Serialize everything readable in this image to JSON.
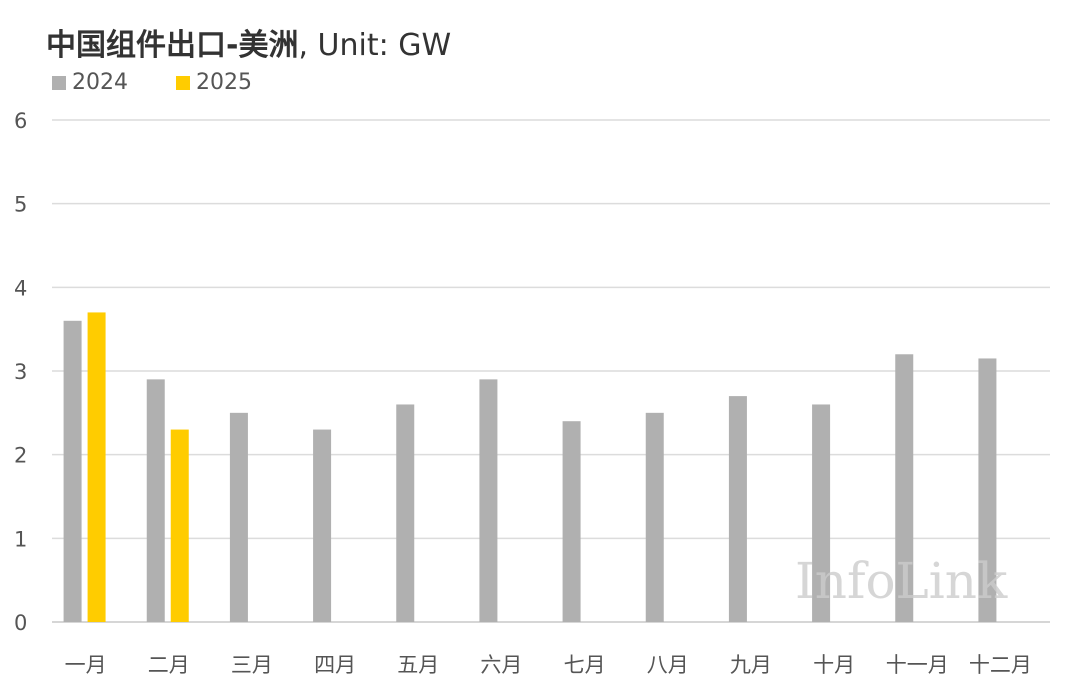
{
  "chart_data": {
    "type": "bar",
    "title": "中国组件出口-美洲",
    "title_suffix": ", Unit: GW",
    "xlabel": "",
    "ylabel": "",
    "ylim": [
      0,
      6
    ],
    "yticks": [
      "0",
      "1",
      "2",
      "3",
      "4",
      "5",
      "6"
    ],
    "grid": true,
    "legend_position": "top-left",
    "categories": [
      "一月",
      "二月",
      "三月",
      "四月",
      "五月",
      "六月",
      "七月",
      "八月",
      "九月",
      "十月",
      "十一月",
      "十二月"
    ],
    "series": [
      {
        "name": "2024",
        "color": "#b0b0b0",
        "values": [
          3.6,
          2.9,
          2.5,
          2.3,
          2.6,
          2.9,
          2.4,
          2.5,
          2.7,
          2.6,
          3.2,
          3.15
        ]
      },
      {
        "name": "2025",
        "color": "#ffcc00",
        "values": [
          3.7,
          2.3,
          null,
          null,
          null,
          null,
          null,
          null,
          null,
          null,
          null,
          null
        ]
      }
    ],
    "watermark": "InfoLink"
  }
}
